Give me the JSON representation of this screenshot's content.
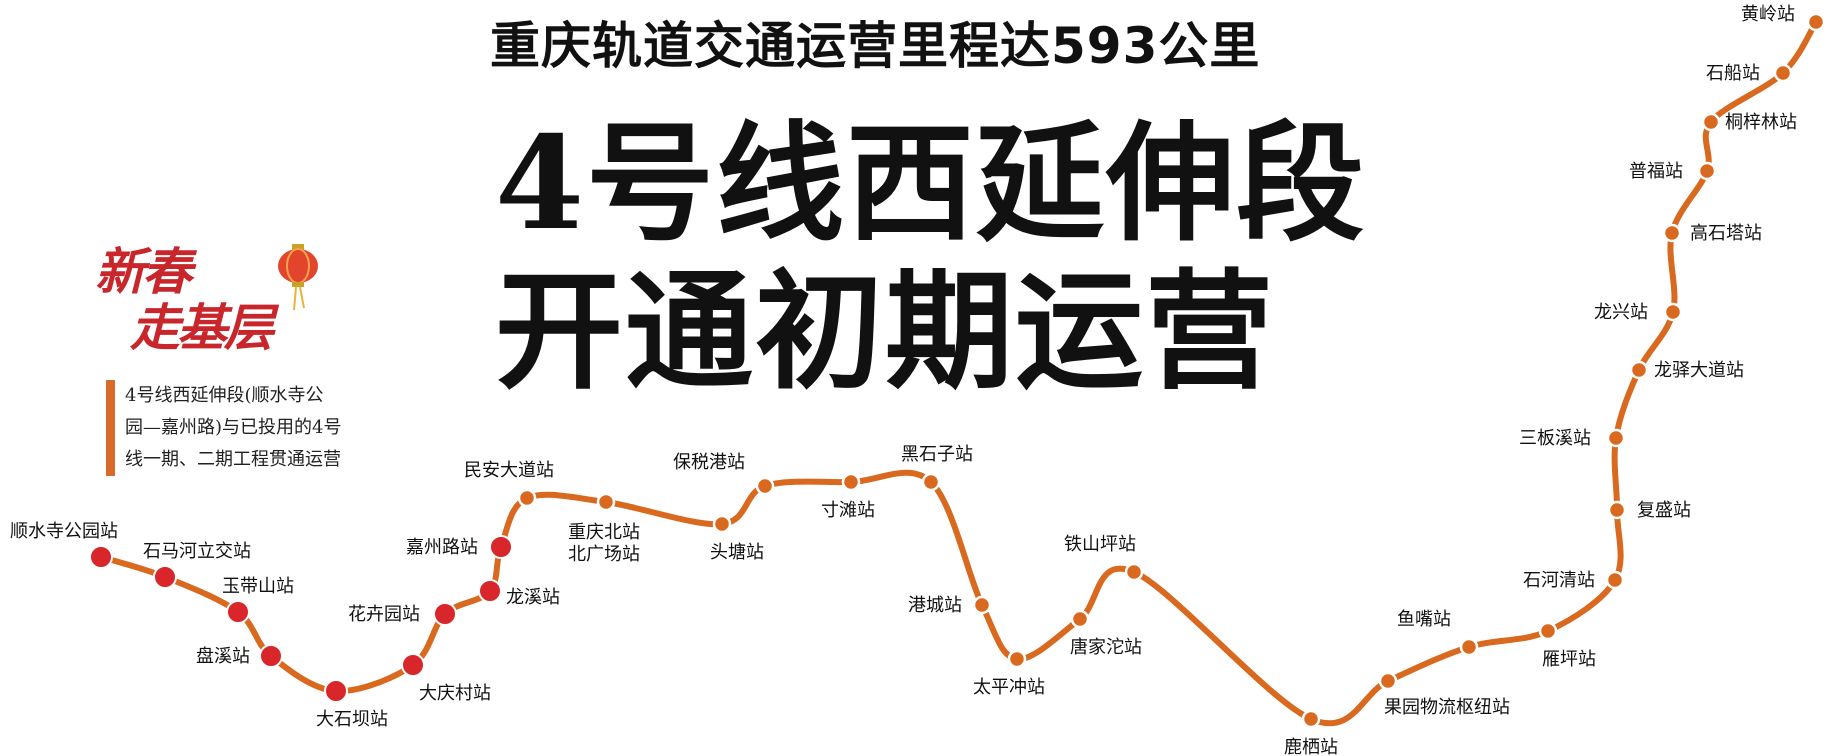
{
  "headline": "重庆轨道交通运营里程达593公里",
  "title_line1": "4号线西延伸段",
  "title_line2": "开通初期运营",
  "badge": {
    "line1": "新春",
    "line2": "走基层"
  },
  "caption": {
    "line1": "4号线西延伸段(顺水寺公",
    "line2": "园—嘉州路)与已投用的4号",
    "line3": "线一期、二期工程贯通运营"
  },
  "colors": {
    "line": "#d8691f",
    "new_station": "#d9262a",
    "existing_station": "#d8691f",
    "badge": "#c8262a"
  },
  "stations": [
    {
      "name": "顺水寺公园站",
      "section": "new"
    },
    {
      "name": "石马河立交站",
      "section": "new"
    },
    {
      "name": "玉带山站",
      "section": "new"
    },
    {
      "name": "盘溪站",
      "section": "new"
    },
    {
      "name": "大石坝站",
      "section": "new"
    },
    {
      "name": "大庆村站",
      "section": "new"
    },
    {
      "name": "花卉园站",
      "section": "new"
    },
    {
      "name": "龙溪站",
      "section": "new"
    },
    {
      "name": "嘉州路站",
      "section": "new"
    },
    {
      "name": "民安大道站",
      "section": "existing"
    },
    {
      "name": "重庆北站",
      "name2": "北广场站",
      "section": "existing"
    },
    {
      "name": "头塘站",
      "section": "existing"
    },
    {
      "name": "保税港站",
      "section": "existing"
    },
    {
      "name": "寸滩站",
      "section": "existing"
    },
    {
      "name": "黑石子站",
      "section": "existing"
    },
    {
      "name": "港城站",
      "section": "existing"
    },
    {
      "name": "太平冲站",
      "section": "existing"
    },
    {
      "name": "唐家沱站",
      "section": "existing"
    },
    {
      "name": "铁山坪站",
      "section": "existing"
    },
    {
      "name": "鹿栖站",
      "section": "existing"
    },
    {
      "name": "果园物流枢纽站",
      "section": "existing"
    },
    {
      "name": "鱼嘴站",
      "section": "existing"
    },
    {
      "name": "雁坪站",
      "section": "existing"
    },
    {
      "name": "石河清站",
      "section": "existing"
    },
    {
      "name": "复盛站",
      "section": "existing"
    },
    {
      "name": "三板溪站",
      "section": "existing"
    },
    {
      "name": "龙驿大道站",
      "section": "existing"
    },
    {
      "name": "龙兴站",
      "section": "existing"
    },
    {
      "name": "高石塔站",
      "section": "existing"
    },
    {
      "name": "普福站",
      "section": "existing"
    },
    {
      "name": "桐梓林站",
      "section": "existing"
    },
    {
      "name": "石船站",
      "section": "existing"
    },
    {
      "name": "黄岭站",
      "section": "existing"
    }
  ]
}
